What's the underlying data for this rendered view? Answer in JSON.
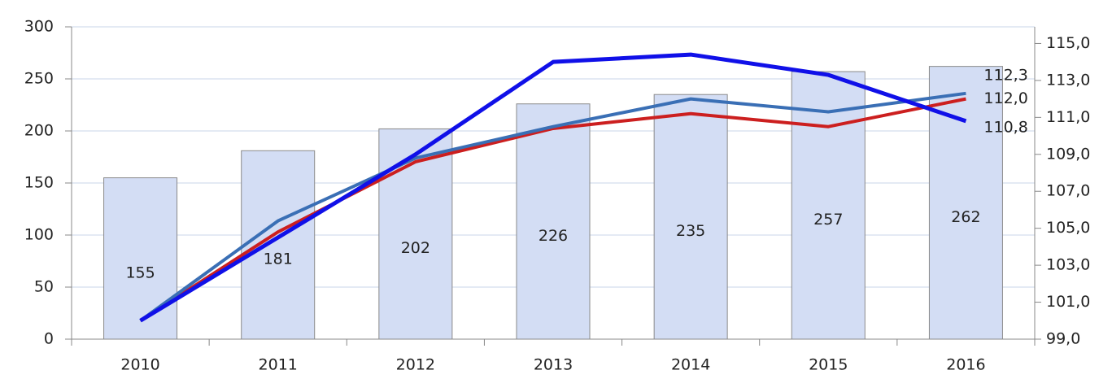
{
  "chart_data": {
    "type": "bar",
    "categories": [
      "2010",
      "2011",
      "2012",
      "2013",
      "2014",
      "2015",
      "2016"
    ],
    "values": [
      155,
      181,
      202,
      226,
      235,
      257,
      262
    ],
    "color": "#d3ddf4",
    "ylim": [
      0,
      300
    ],
    "yticks": [
      0,
      50,
      100,
      150,
      200,
      250,
      300
    ],
    "y2lim": [
      99,
      115.9
    ],
    "y2ticks": [
      {
        "value": 99,
        "label": "99,0"
      },
      {
        "value": 101,
        "label": "101,0"
      },
      {
        "value": 103,
        "label": "103,0"
      },
      {
        "value": 105,
        "label": "105,0"
      },
      {
        "value": 107,
        "label": "107,0"
      },
      {
        "value": 109,
        "label": "109,0"
      },
      {
        "value": 111,
        "label": "111,0"
      },
      {
        "value": 113,
        "label": "113,0"
      },
      {
        "value": 115,
        "label": "115,0"
      }
    ],
    "grid": true,
    "series": [
      {
        "type": "line",
        "axis": "y2",
        "color": "#cc1f1f",
        "values": [
          100.0,
          104.8,
          108.6,
          110.4,
          111.2,
          110.5,
          112.0
        ],
        "value_labels": [
          null,
          null,
          null,
          null,
          null,
          null,
          "112,0"
        ]
      },
      {
        "type": "line",
        "axis": "y2",
        "color": "#3a6fb5",
        "values": [
          100.0,
          105.4,
          108.8,
          110.5,
          112.0,
          111.3,
          112.3
        ],
        "value_labels": [
          null,
          null,
          null,
          null,
          null,
          null,
          "112,3"
        ]
      },
      {
        "type": "line",
        "axis": "y2",
        "color": "#1010e8",
        "values": [
          100.0,
          104.5,
          109.0,
          114.0,
          114.4,
          113.3,
          110.8
        ],
        "value_labels": [
          null,
          null,
          null,
          null,
          null,
          null,
          "110,8"
        ]
      }
    ]
  }
}
